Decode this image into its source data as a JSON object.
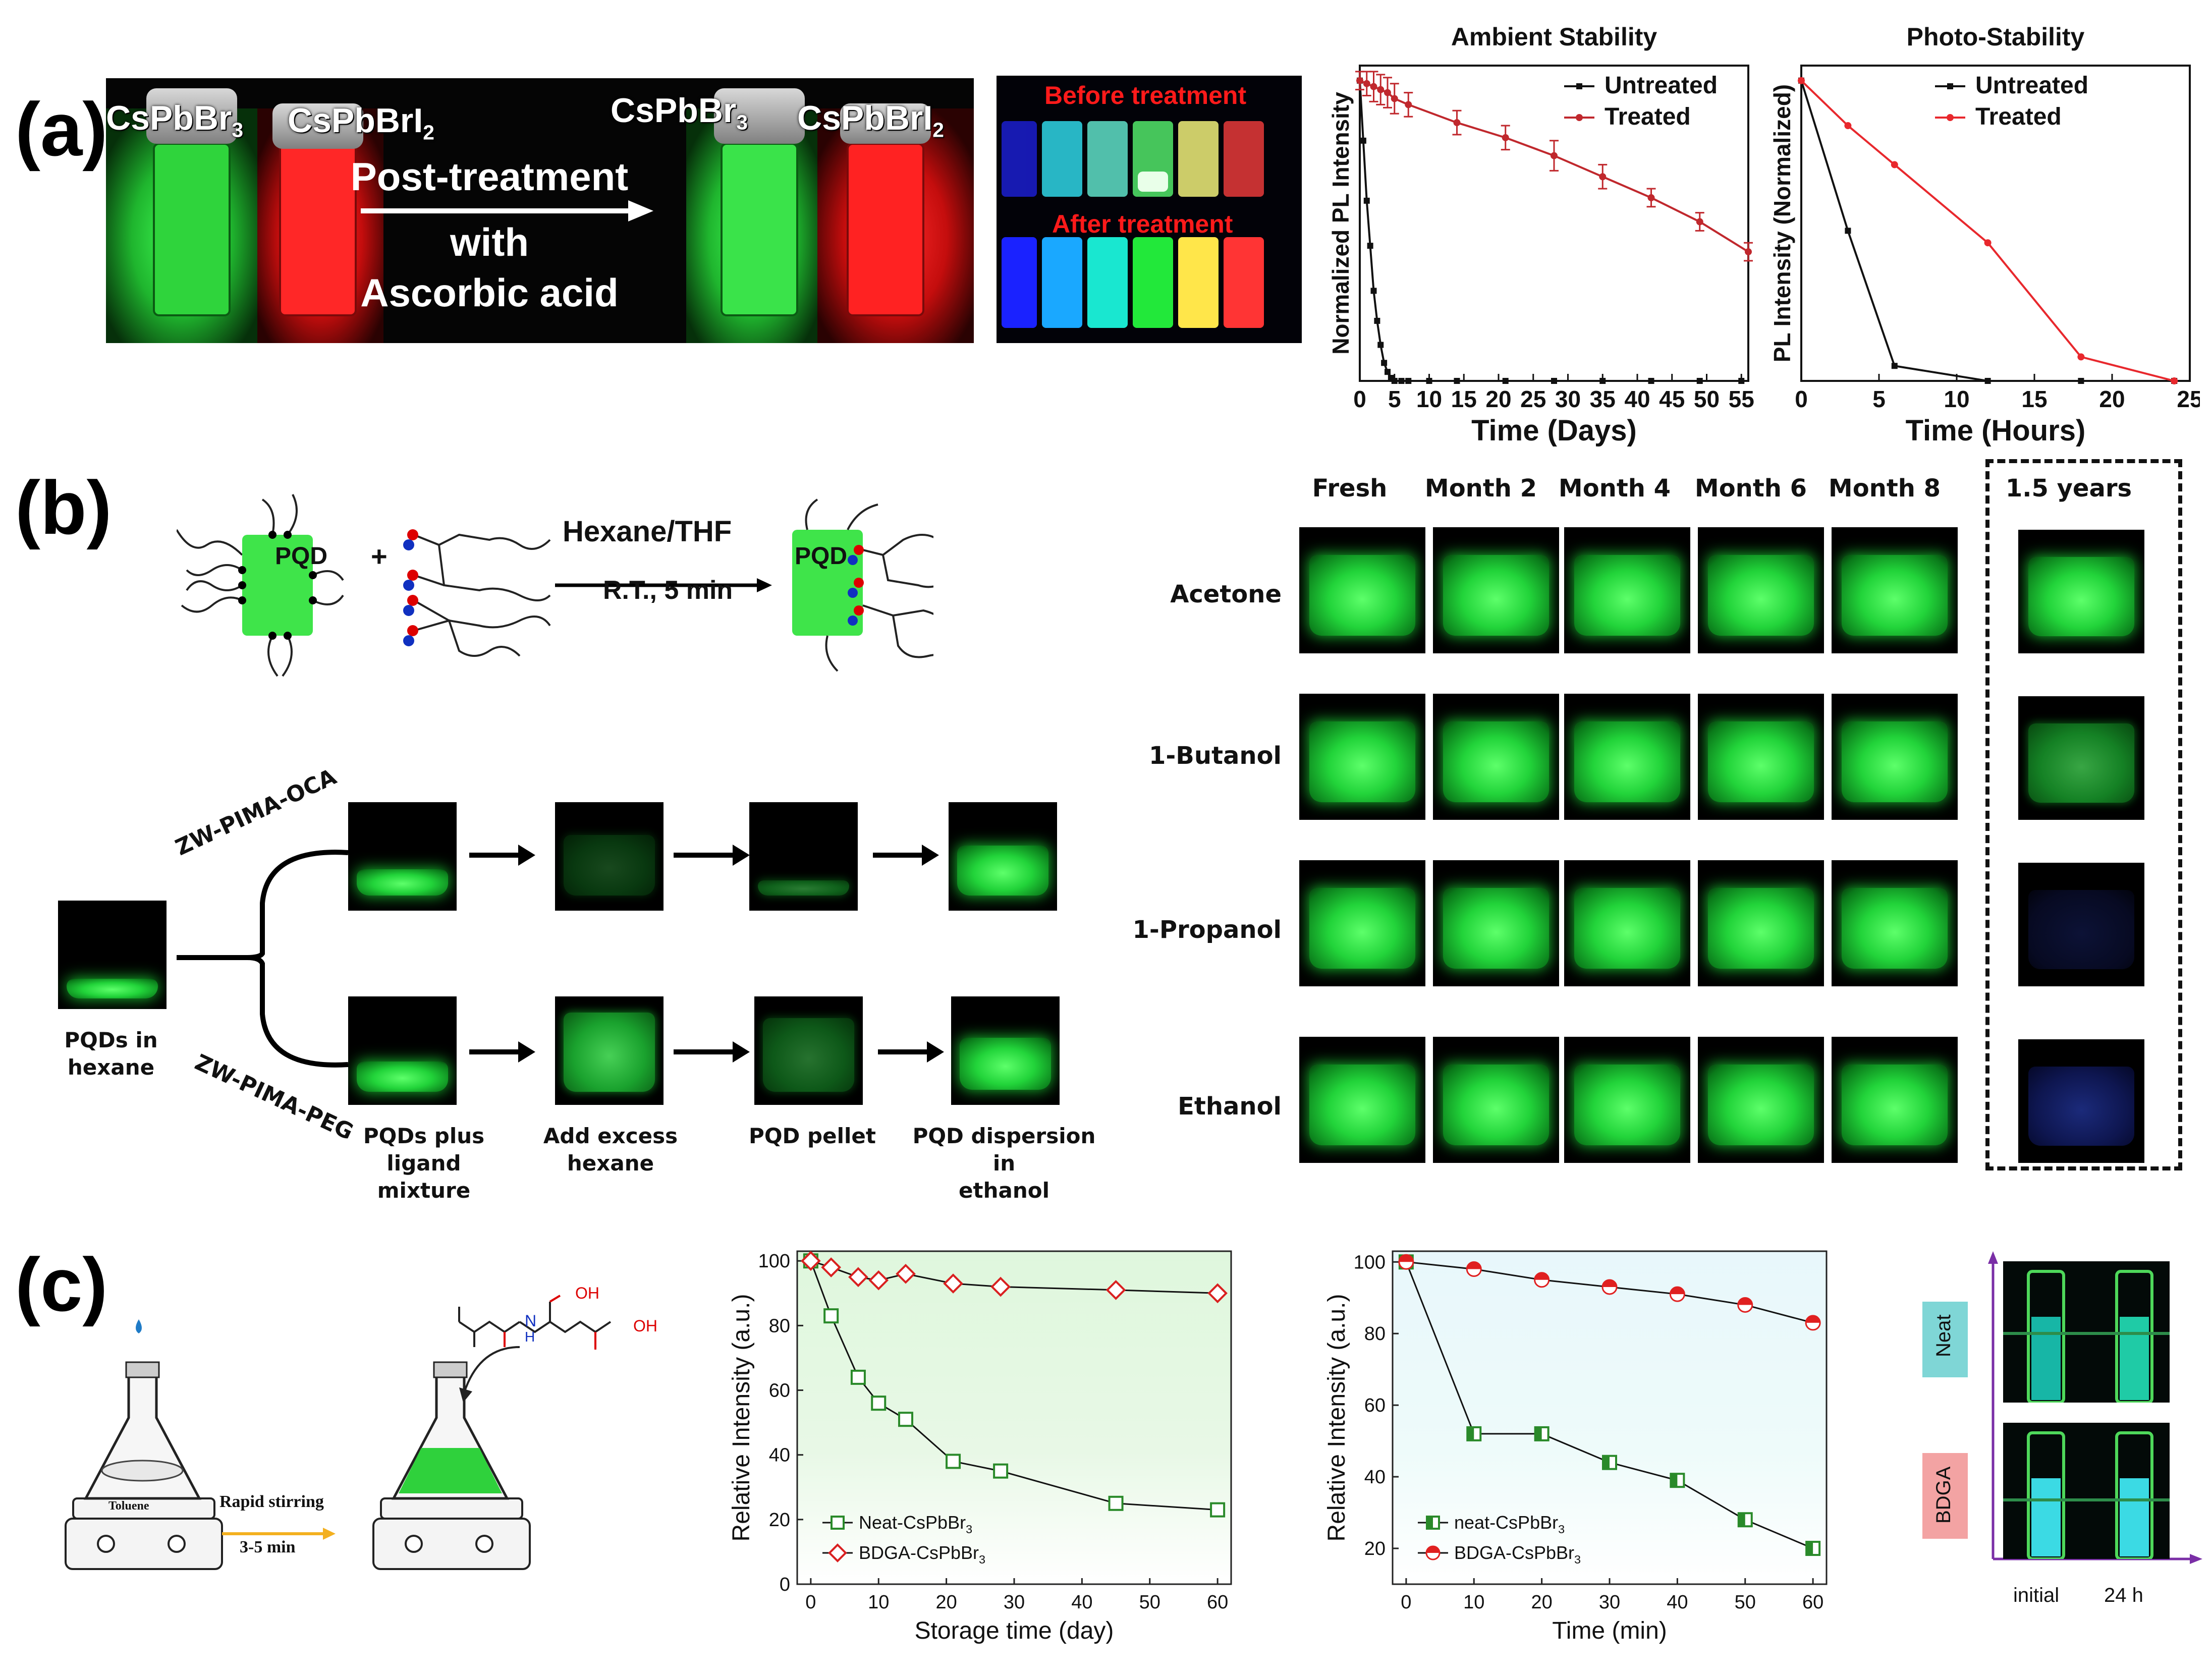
{
  "panels": {
    "a": "(a)",
    "b": "(b)",
    "c": "(c)"
  },
  "panel_a": {
    "photo_labels": {
      "cspbbr3_before": "CsPbBr3",
      "cspbbri2_before": "CsPbBrI2",
      "post_treatment_line1": "Post-treatment",
      "post_treatment_line2": "with",
      "post_treatment_line3": "Ascorbic acid",
      "cspbbr3_after": "CsPbBr3",
      "cspbbri2_after": "CsPbBrI2",
      "before_treatment": "Before treatment",
      "after_treatment": "After treatment"
    },
    "colors": {
      "red_text": "#ff1a1a",
      "green_vial": "#35e03f",
      "red_vial": "#ff2020"
    }
  },
  "panel_b": {
    "reaction": {
      "pqd": "PQD",
      "plus": "+",
      "solvent": "Hexane/THF",
      "conditions": "R.T., 5 min",
      "pqd_product": "PQD"
    },
    "workflow": {
      "start_label": "PQDs in hexane",
      "branch_top": "ZW-PIMA-OCA",
      "branch_bottom": "ZW-PIMA-PEG",
      "step_labels": [
        "PQDs plus ligand mixture",
        "Add excess hexane",
        "PQD pellet",
        "PQD dispersion in ethanol"
      ],
      "step_lines": [
        [
          "PQDs plus ligand",
          "mixture"
        ],
        [
          "Add excess",
          "hexane"
        ],
        [
          "PQD pellet"
        ],
        [
          "PQD dispersion in",
          "ethanol"
        ]
      ]
    },
    "stability_grid": {
      "columns": [
        "Fresh",
        "Month 2",
        "Month 4",
        "Month 6",
        "Month 8"
      ],
      "extra_column": "1.5 years",
      "rows": [
        "Acetone",
        "1-Butanol",
        "1-Propanol",
        "Ethanol"
      ],
      "extra_column_state": [
        "bright-green",
        "dim-green",
        "faint-blue",
        "blue"
      ]
    }
  },
  "panel_c": {
    "scheme": {
      "flask_label": "Toluene",
      "arrow_line1": "Rapid stirring",
      "arrow_line2": "3-5 min",
      "oh_top": "OH",
      "oh_right": "OH",
      "nh": "N",
      "h": "H"
    },
    "photo": {
      "neat_tag": "Neat",
      "bdga_tag": "BDGA",
      "x_initial": "initial",
      "x_24h": "24 h",
      "colors": {
        "neat_tag_bg": "#7fd6d6",
        "bdga_tag_bg": "#f3a3a3",
        "axis": "#7a2ea6"
      }
    }
  },
  "chart_data": [
    {
      "id": "ambient-stability",
      "type": "line",
      "title": "Ambient Stability",
      "xlabel": "Time (Days)",
      "ylabel": "Normalized PL Intensity",
      "xlim": [
        0,
        56
      ],
      "ylim": [
        0,
        1.05
      ],
      "xticks": [
        0,
        5,
        10,
        15,
        20,
        25,
        30,
        35,
        40,
        45,
        50,
        55
      ],
      "legend": "top-right",
      "series": [
        {
          "name": "Untreated",
          "color": "#111111",
          "x": [
            0,
            0.5,
            1,
            1.5,
            2,
            2.5,
            3,
            3.5,
            4,
            4.5,
            5,
            6,
            7,
            10,
            14,
            21,
            28,
            35,
            42,
            49,
            55
          ],
          "y": [
            1.0,
            0.8,
            0.6,
            0.45,
            0.3,
            0.2,
            0.12,
            0.06,
            0.03,
            0.01,
            0.0,
            0.0,
            0.0,
            0.0,
            0.0,
            0.0,
            0.0,
            0.0,
            0.0,
            0.0,
            0.0
          ]
        },
        {
          "name": "Treated",
          "color": "#c0282d",
          "x": [
            0,
            1,
            2,
            3,
            4,
            5,
            7,
            14,
            21,
            28,
            35,
            42,
            49,
            56
          ],
          "y": [
            1.0,
            0.99,
            0.98,
            0.97,
            0.96,
            0.94,
            0.92,
            0.86,
            0.81,
            0.75,
            0.68,
            0.61,
            0.53,
            0.43
          ],
          "yerr": [
            0.03,
            0.04,
            0.05,
            0.05,
            0.05,
            0.05,
            0.04,
            0.04,
            0.04,
            0.05,
            0.04,
            0.03,
            0.03,
            0.03
          ]
        }
      ]
    },
    {
      "id": "photo-stability",
      "type": "line",
      "title": "Photo-Stability",
      "xlabel": "Time (Hours)",
      "ylabel": "PL Intensity (Normalized)",
      "xlim": [
        0,
        25
      ],
      "ylim": [
        0,
        1.05
      ],
      "xticks": [
        0,
        5,
        10,
        15,
        20,
        25
      ],
      "legend": "top-right",
      "series": [
        {
          "name": "Untreated",
          "color": "#111111",
          "x": [
            0,
            3,
            6,
            12,
            18,
            24
          ],
          "y": [
            1.0,
            0.5,
            0.05,
            0.0,
            0.0,
            0.0
          ]
        },
        {
          "name": "Treated",
          "color": "#e8282d",
          "x": [
            0,
            3,
            6,
            12,
            18,
            24
          ],
          "y": [
            1.0,
            0.85,
            0.72,
            0.46,
            0.08,
            0.0
          ]
        }
      ]
    },
    {
      "id": "storage-stability",
      "type": "line",
      "xlabel": "Storage time (day)",
      "ylabel": "Relative Intensity (a.u.)",
      "xlim": [
        -2,
        62
      ],
      "ylim": [
        0,
        103
      ],
      "xticks": [
        0,
        10,
        20,
        30,
        40,
        50,
        60
      ],
      "yticks": [
        0,
        20,
        40,
        60,
        80,
        100
      ],
      "legend": "bottom-left",
      "series": [
        {
          "name": "Neat-CsPbBr3",
          "color": "#2a8a2a",
          "marker": "square",
          "x": [
            0,
            3,
            7,
            10,
            14,
            21,
            28,
            45,
            60
          ],
          "y": [
            100,
            83,
            64,
            56,
            51,
            38,
            35,
            25,
            23
          ]
        },
        {
          "name": "BDGA-CsPbBr3",
          "color": "#d92020",
          "marker": "diamond",
          "x": [
            0,
            3,
            7,
            10,
            14,
            21,
            28,
            45,
            60
          ],
          "y": [
            100,
            98,
            95,
            94,
            96,
            93,
            92,
            91,
            90
          ]
        }
      ]
    },
    {
      "id": "time-stability",
      "type": "line",
      "xlabel": "Time (min)",
      "ylabel": "Relative Intensity (a.u.)",
      "xlim": [
        -2,
        62
      ],
      "ylim": [
        10,
        103
      ],
      "xticks": [
        0,
        10,
        20,
        30,
        40,
        50,
        60
      ],
      "yticks": [
        20,
        40,
        60,
        80,
        100
      ],
      "legend": "bottom-left",
      "series": [
        {
          "name": "neat-CsPbBr3",
          "color": "#2a8a2a",
          "marker": "half-square",
          "x": [
            0,
            10,
            20,
            30,
            40,
            50,
            60
          ],
          "y": [
            100,
            52,
            52,
            44,
            39,
            28,
            20
          ]
        },
        {
          "name": "BDGA-CsPbBr3",
          "color": "#e02020",
          "marker": "half-circle",
          "x": [
            0,
            10,
            20,
            30,
            40,
            50,
            60
          ],
          "y": [
            100,
            98,
            95,
            93,
            91,
            88,
            83
          ]
        }
      ]
    }
  ]
}
